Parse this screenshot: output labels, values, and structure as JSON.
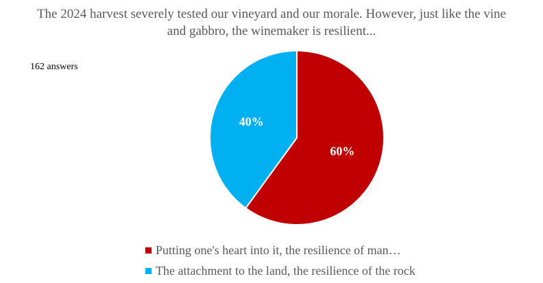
{
  "title": "The 2024 harvest severely tested our vineyard and our morale. However, just like the vine and gabbro, the winemaker is resilient...",
  "responses_label": "162 answers",
  "chart_data": {
    "type": "pie",
    "title": "The 2024 harvest severely tested our vineyard and our morale. However, just like the vine and gabbro, the winemaker is resilient...",
    "slices": [
      {
        "label": "Putting one's heart into it, the resilience of man…",
        "value": 60,
        "display": "60%",
        "color": "#C00000"
      },
      {
        "label": "The attachment to the land, the resilience of the rock",
        "value": 40,
        "display": "40%",
        "color": "#00B0F0"
      }
    ],
    "legend_position": "bottom"
  }
}
